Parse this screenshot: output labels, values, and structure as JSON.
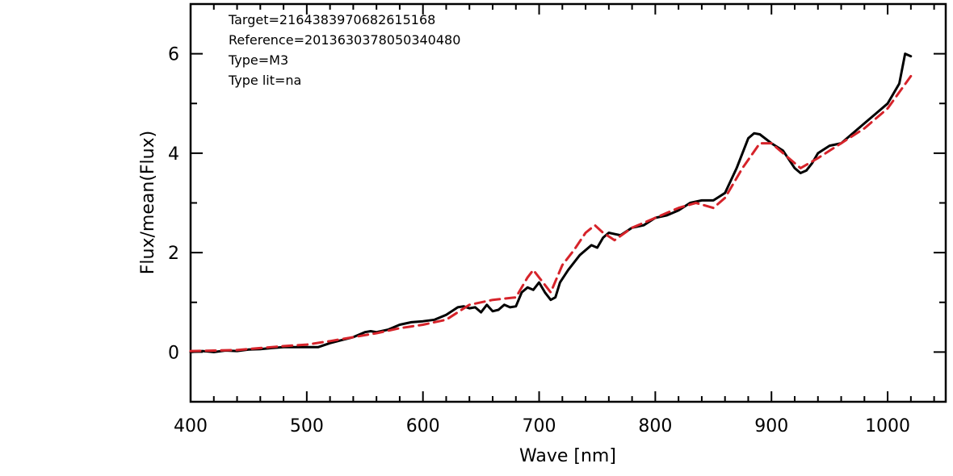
{
  "chart_data": {
    "type": "line",
    "title": "",
    "xlabel": "Wave [nm]",
    "ylabel": "Flux/mean(Flux)",
    "xlim": [
      400,
      1050
    ],
    "ylim": [
      -1,
      7
    ],
    "xticks": [
      400,
      500,
      600,
      700,
      800,
      900,
      1000
    ],
    "yticks": [
      0,
      2,
      4,
      6
    ],
    "grid": false,
    "legend": "none",
    "annotations": [
      "Target=2164383970682615168",
      "Reference=2013630378050340480",
      "Type=M3",
      "Type lit=na"
    ],
    "series": [
      {
        "color": "#000000",
        "style": "solid",
        "x": [
          400,
          410,
          420,
          430,
          440,
          450,
          460,
          470,
          480,
          490,
          500,
          510,
          520,
          530,
          540,
          550,
          555,
          560,
          570,
          580,
          590,
          600,
          610,
          620,
          630,
          635,
          640,
          645,
          650,
          655,
          660,
          665,
          670,
          675,
          680,
          685,
          690,
          695,
          700,
          705,
          710,
          714,
          718,
          725,
          735,
          745,
          750,
          755,
          760,
          770,
          780,
          790,
          800,
          810,
          820,
          830,
          840,
          850,
          860,
          870,
          880,
          885,
          890,
          900,
          910,
          920,
          925,
          930,
          935,
          940,
          950,
          960,
          970,
          980,
          990,
          1000,
          1010,
          1015,
          1020
        ],
        "y": [
          0.0,
          0.02,
          0.0,
          0.03,
          0.02,
          0.05,
          0.06,
          0.08,
          0.1,
          0.1,
          0.1,
          0.1,
          0.18,
          0.24,
          0.3,
          0.4,
          0.42,
          0.4,
          0.45,
          0.55,
          0.6,
          0.62,
          0.65,
          0.75,
          0.9,
          0.92,
          0.88,
          0.9,
          0.8,
          0.95,
          0.82,
          0.85,
          0.95,
          0.9,
          0.92,
          1.2,
          1.3,
          1.25,
          1.4,
          1.2,
          1.05,
          1.1,
          1.4,
          1.65,
          1.95,
          2.15,
          2.1,
          2.3,
          2.4,
          2.35,
          2.5,
          2.55,
          2.7,
          2.75,
          2.85,
          3.0,
          3.05,
          3.05,
          3.2,
          3.7,
          4.3,
          4.4,
          4.38,
          4.2,
          4.05,
          3.7,
          3.6,
          3.65,
          3.8,
          4.0,
          4.15,
          4.2,
          4.4,
          4.6,
          4.8,
          5.0,
          5.4,
          6.0,
          5.95
        ]
      },
      {
        "color": "#d6232a",
        "style": "dashed",
        "x": [
          400,
          420,
          440,
          460,
          480,
          500,
          520,
          540,
          560,
          580,
          600,
          620,
          640,
          660,
          680,
          690,
          695,
          700,
          710,
          720,
          730,
          740,
          748,
          755,
          765,
          780,
          800,
          820,
          835,
          850,
          860,
          875,
          890,
          900,
          910,
          925,
          940,
          960,
          980,
          1000,
          1020
        ],
        "y": [
          0.02,
          0.03,
          0.04,
          0.08,
          0.12,
          0.15,
          0.22,
          0.3,
          0.38,
          0.48,
          0.55,
          0.65,
          0.95,
          1.05,
          1.1,
          1.5,
          1.65,
          1.5,
          1.2,
          1.75,
          2.05,
          2.4,
          2.55,
          2.4,
          2.25,
          2.5,
          2.7,
          2.9,
          3.0,
          2.9,
          3.1,
          3.7,
          4.2,
          4.2,
          4.0,
          3.7,
          3.9,
          4.2,
          4.5,
          4.9,
          5.55
        ]
      }
    ]
  }
}
